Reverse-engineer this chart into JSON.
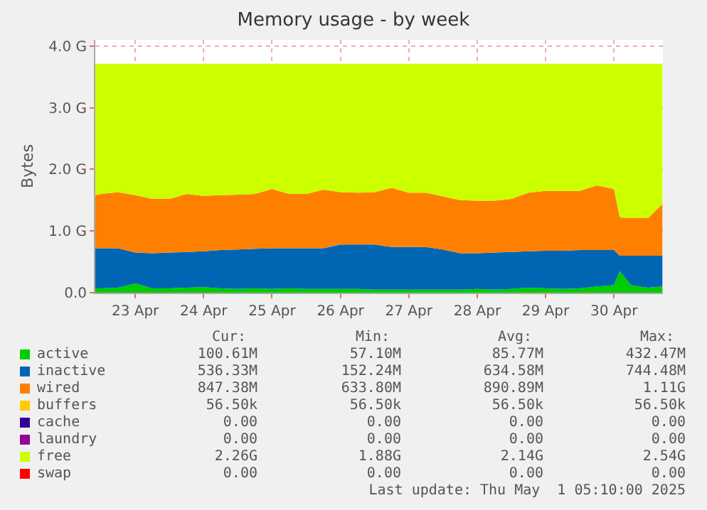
{
  "chart_data": {
    "type": "area",
    "stacked": true,
    "title": "Memory usage - by week",
    "ylabel": "Bytes",
    "x": [
      "2025-04-22T22:00",
      "2025-04-23T00:00",
      "2025-04-23T06:00",
      "2025-04-23T12:00",
      "2025-04-23T18:00",
      "2025-04-24T00:00",
      "2025-04-24T06:00",
      "2025-04-24T12:00",
      "2025-04-24T18:00",
      "2025-04-25T00:00",
      "2025-04-25T06:00",
      "2025-04-25T12:00",
      "2025-04-25T18:00",
      "2025-04-26T00:00",
      "2025-04-26T06:00",
      "2025-04-26T12:00",
      "2025-04-26T18:00",
      "2025-04-27T00:00",
      "2025-04-27T06:00",
      "2025-04-27T12:00",
      "2025-04-27T18:00",
      "2025-04-28T00:00",
      "2025-04-28T06:00",
      "2025-04-28T12:00",
      "2025-04-28T18:00",
      "2025-04-29T00:00",
      "2025-04-29T06:00",
      "2025-04-29T12:00",
      "2025-04-29T18:00",
      "2025-04-30T00:00",
      "2025-04-30T06:00",
      "2025-04-30T12:00",
      "2025-04-30T14:00",
      "2025-04-30T18:00",
      "2025-05-01T00:00",
      "2025-05-01T05:00"
    ],
    "series": [
      {
        "name": "active",
        "color": "#00cc00",
        "values": [
          0.07,
          0.07,
          0.08,
          0.15,
          0.07,
          0.07,
          0.08,
          0.09,
          0.07,
          0.06,
          0.07,
          0.06,
          0.07,
          0.06,
          0.06,
          0.06,
          0.06,
          0.05,
          0.05,
          0.05,
          0.05,
          0.05,
          0.05,
          0.06,
          0.05,
          0.06,
          0.08,
          0.07,
          0.06,
          0.07,
          0.1,
          0.12,
          0.35,
          0.12,
          0.08,
          0.1
        ]
      },
      {
        "name": "inactive",
        "color": "#0066b3",
        "values": [
          0.65,
          0.65,
          0.64,
          0.5,
          0.57,
          0.58,
          0.58,
          0.58,
          0.62,
          0.64,
          0.64,
          0.66,
          0.65,
          0.66,
          0.66,
          0.72,
          0.72,
          0.73,
          0.69,
          0.69,
          0.69,
          0.65,
          0.59,
          0.58,
          0.6,
          0.6,
          0.59,
          0.61,
          0.62,
          0.62,
          0.59,
          0.57,
          0.25,
          0.48,
          0.52,
          0.5
        ]
      },
      {
        "name": "wired",
        "color": "#ff8000",
        "values": [
          0.86,
          0.88,
          0.91,
          0.93,
          0.88,
          0.87,
          0.94,
          0.9,
          0.89,
          0.89,
          0.89,
          0.96,
          0.88,
          0.88,
          0.95,
          0.85,
          0.84,
          0.85,
          0.96,
          0.88,
          0.88,
          0.86,
          0.86,
          0.85,
          0.84,
          0.86,
          0.95,
          0.97,
          0.97,
          0.96,
          1.05,
          0.99,
          0.62,
          0.61,
          0.61,
          0.84
        ]
      },
      {
        "name": "buffers",
        "color": "#ffcc00",
        "values": [
          null,
          null,
          null,
          null,
          null,
          null,
          null,
          null,
          null,
          null,
          null,
          null,
          null,
          null,
          null,
          null,
          null,
          null,
          null,
          null,
          null,
          null,
          null,
          null,
          null,
          null,
          null,
          null,
          null,
          null,
          null,
          null,
          null,
          null,
          null,
          null
        ]
      },
      {
        "name": "cache",
        "color": "#330099",
        "values": [
          null,
          null,
          null,
          null,
          null,
          null,
          null,
          null,
          null,
          null,
          null,
          null,
          null,
          null,
          null,
          null,
          null,
          null,
          null,
          null,
          null,
          null,
          null,
          null,
          null,
          null,
          null,
          null,
          null,
          null,
          null,
          null,
          null,
          null,
          null,
          null
        ]
      },
      {
        "name": "laundry",
        "color": "#990099",
        "values": [
          null,
          null,
          null,
          null,
          null,
          null,
          null,
          null,
          null,
          null,
          null,
          null,
          null,
          null,
          null,
          null,
          null,
          null,
          null,
          null,
          null,
          null,
          null,
          null,
          null,
          null,
          null,
          null,
          null,
          null,
          null,
          null,
          null,
          null,
          null,
          null
        ]
      },
      {
        "name": "free",
        "color": "#ccff00",
        "values": [
          2.13,
          2.11,
          2.08,
          2.13,
          2.19,
          2.19,
          2.11,
          2.14,
          2.13,
          2.12,
          2.11,
          2.03,
          2.11,
          2.11,
          2.04,
          2.08,
          2.09,
          2.08,
          2.01,
          2.09,
          2.09,
          2.15,
          2.21,
          2.22,
          2.22,
          2.19,
          2.09,
          2.06,
          2.06,
          2.06,
          1.97,
          2.03,
          2.49,
          2.5,
          2.5,
          2.27
        ]
      },
      {
        "name": "swap",
        "color": "#ff0000",
        "values": [
          null,
          null,
          null,
          null,
          null,
          null,
          null,
          null,
          null,
          null,
          null,
          null,
          null,
          null,
          null,
          null,
          null,
          null,
          null,
          null,
          null,
          null,
          null,
          null,
          null,
          null,
          null,
          null,
          null,
          null,
          null,
          null,
          null,
          null,
          null,
          null
        ]
      }
    ],
    "xlim": [
      "2025-04-22T22:00",
      "2025-05-01T05:10"
    ],
    "xticks": [
      {
        "value": "2025-04-23T12:00",
        "label": "23 Apr"
      },
      {
        "value": "2025-04-24T12:00",
        "label": "24 Apr"
      },
      {
        "value": "2025-04-25T12:00",
        "label": "25 Apr"
      },
      {
        "value": "2025-04-26T12:00",
        "label": "26 Apr"
      },
      {
        "value": "2025-04-27T12:00",
        "label": "27 Apr"
      },
      {
        "value": "2025-04-28T12:00",
        "label": "28 Apr"
      },
      {
        "value": "2025-04-29T12:00",
        "label": "29 Apr"
      },
      {
        "value": "2025-04-30T12:00",
        "label": "30 Apr"
      }
    ],
    "ylim": [
      0,
      4.1
    ],
    "yticks": [
      {
        "value": 0,
        "label": "0.0"
      },
      {
        "value": 1,
        "label": "1.0 G"
      },
      {
        "value": 2,
        "label": "2.0 G"
      },
      {
        "value": 3,
        "label": "3.0 G"
      },
      {
        "value": 4,
        "label": "4.0 G"
      }
    ],
    "grid": true,
    "legend": "bottom",
    "annotations": [
      "Cur:",
      "Min:",
      "Avg:",
      "Max:",
      "100.61M",
      "57.10M",
      "85.77M",
      "432.47M",
      "536.33M",
      "152.24M",
      "634.58M",
      "744.48M",
      "847.38M",
      "633.80M",
      "890.89M",
      "1.11G",
      "56.50k",
      "56.50k",
      "56.50k",
      "56.50k",
      "0.00",
      "0.00",
      "0.00",
      "0.00",
      "0.00",
      "0.00",
      "0.00",
      "0.00",
      "2.26G",
      "1.88G",
      "2.14G",
      "2.54G",
      "0.00",
      "0.00",
      "0.00",
      "0.00",
      "Last update: Thu May  1 05:10:00 2025"
    ]
  }
}
